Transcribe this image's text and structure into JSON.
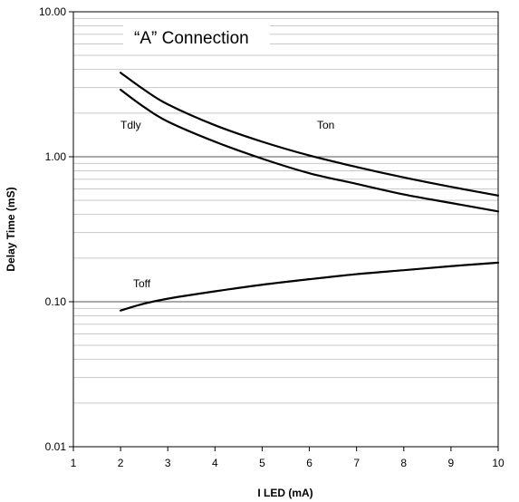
{
  "chart_data": {
    "type": "line",
    "title": "“A” Connection",
    "xlabel": "I LED (mA)",
    "ylabel": "Delay Time (mS)",
    "xlim": [
      1,
      10
    ],
    "ylim": [
      0.01,
      10
    ],
    "yscale": "log",
    "grid": true,
    "x_ticks": [
      "1",
      "2",
      "3",
      "4",
      "5",
      "6",
      "7",
      "8",
      "9",
      "10"
    ],
    "y_ticks": [
      "10.00",
      "1.00",
      "0.10",
      "0.01"
    ],
    "series": [
      {
        "name": "Ton",
        "x": [
          2,
          2.5,
          3,
          4,
          5,
          6,
          7,
          8,
          9,
          10
        ],
        "y": [
          3.8,
          2.9,
          2.3,
          1.65,
          1.27,
          1.02,
          0.85,
          0.72,
          0.62,
          0.54
        ]
      },
      {
        "name": "Tdly",
        "x": [
          2,
          2.5,
          3,
          4,
          5,
          6,
          7,
          8,
          9,
          10
        ],
        "y": [
          2.9,
          2.2,
          1.75,
          1.27,
          0.97,
          0.77,
          0.65,
          0.55,
          0.48,
          0.42
        ]
      },
      {
        "name": "Toff",
        "x": [
          2,
          2.5,
          3,
          4,
          5,
          6,
          7,
          8,
          9,
          10
        ],
        "y": [
          0.087,
          0.097,
          0.105,
          0.118,
          0.131,
          0.143,
          0.155,
          0.165,
          0.176,
          0.186
        ]
      }
    ]
  }
}
